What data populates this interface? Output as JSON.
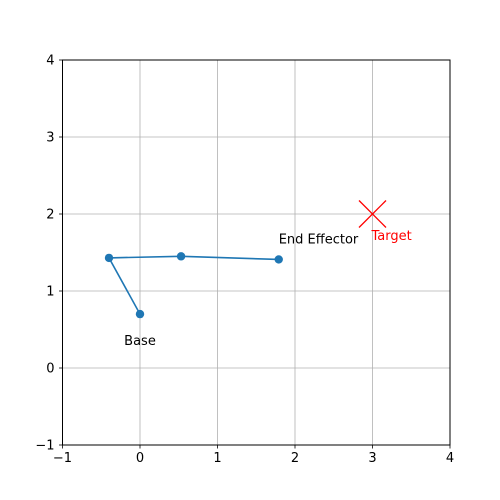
{
  "chart_data": {
    "type": "line",
    "title": "",
    "xlabel": "",
    "ylabel": "",
    "xlim": [
      -1,
      4
    ],
    "ylim": [
      -1,
      4
    ],
    "grid": true,
    "xticks": [
      -1,
      0,
      1,
      2,
      3,
      4
    ],
    "yticks": [
      -1,
      0,
      1,
      2,
      3,
      4
    ],
    "series": [
      {
        "color": "#1f77b4",
        "marker": "circle",
        "points": [
          {
            "x": 0.0,
            "y": 0.7
          },
          {
            "x": -0.4,
            "y": 1.43
          },
          {
            "x": 0.53,
            "y": 1.45
          },
          {
            "x": 1.79,
            "y": 1.41
          }
        ]
      }
    ],
    "target": {
      "x": 3.0,
      "y": 2.0,
      "marker": "x",
      "color": "#ff0000"
    },
    "annotations": [
      {
        "text": "Base",
        "x": 0.0,
        "y": 0.7,
        "color": "#000000",
        "anchor": "below"
      },
      {
        "text": "End Effector",
        "x": 1.79,
        "y": 1.41,
        "color": "#000000",
        "anchor": "above"
      },
      {
        "text": "Target",
        "x": 3.0,
        "y": 2.0,
        "color": "#ff0000",
        "anchor": "below-right"
      }
    ]
  }
}
